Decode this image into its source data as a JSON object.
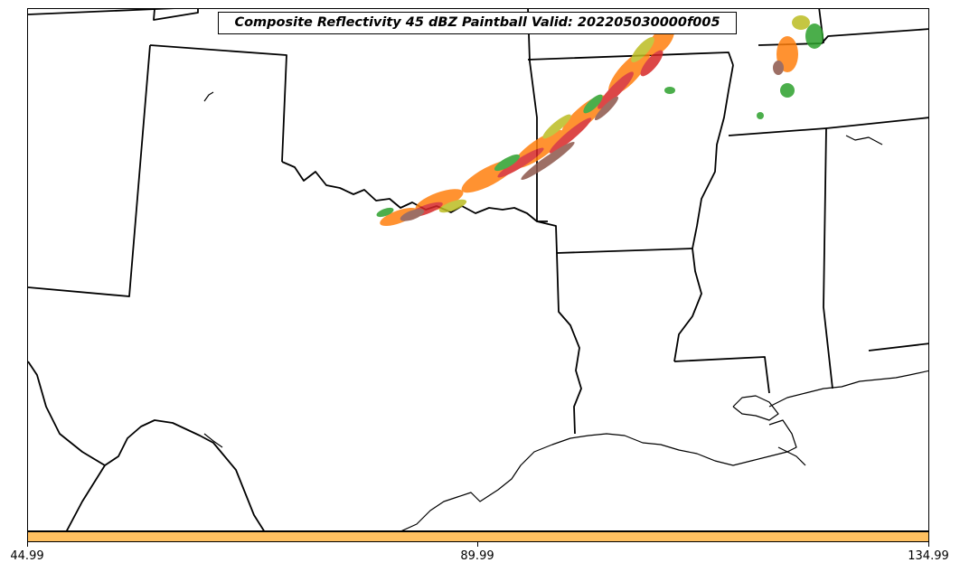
{
  "map": {
    "title": "Composite Reflectivity 45 dBZ Paintball Valid: 202205030000f005",
    "region": "South-Central United States",
    "features": [
      "state-borders",
      "coastline",
      "paintball-reflectivity"
    ],
    "paintball_colors": [
      "#d62728",
      "#ff7f0e",
      "#2ca02c",
      "#8c564b",
      "#bcbd22",
      "#e377c2",
      "#17becf"
    ]
  },
  "colorbar": {
    "color": "#ffc060",
    "ticks": [
      "44.99",
      "89.99",
      "134.99"
    ]
  }
}
